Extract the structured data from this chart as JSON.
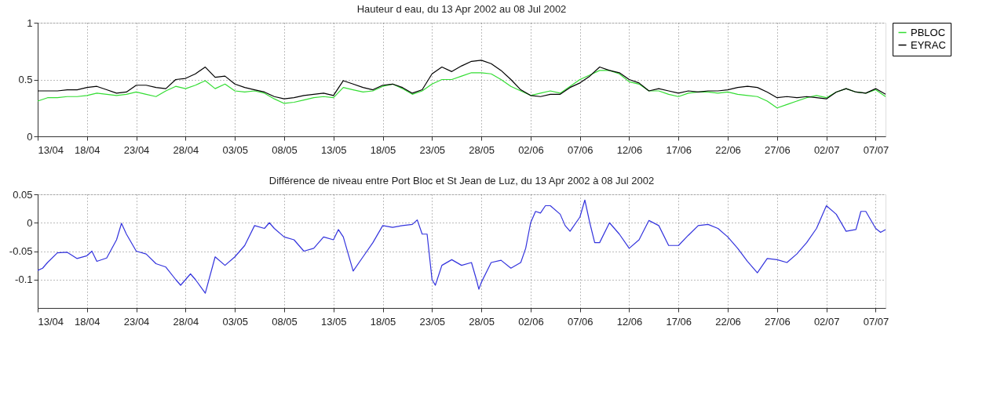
{
  "chart_data": [
    {
      "type": "line",
      "title": "Hauteur d eau, du 13 Apr 2002 au 08 Jul 2002",
      "x": [
        "2002-04-13",
        "2002-04-14",
        "2002-04-15",
        "2002-04-16",
        "2002-04-17",
        "2002-04-18",
        "2002-04-19",
        "2002-04-20",
        "2002-04-21",
        "2002-04-22",
        "2002-04-23",
        "2002-04-24",
        "2002-04-25",
        "2002-04-26",
        "2002-04-27",
        "2002-04-28",
        "2002-04-29",
        "2002-04-30",
        "2002-05-01",
        "2002-05-02",
        "2002-05-03",
        "2002-05-04",
        "2002-05-05",
        "2002-05-06",
        "2002-05-07",
        "2002-05-08",
        "2002-05-09",
        "2002-05-10",
        "2002-05-11",
        "2002-05-12",
        "2002-05-13",
        "2002-05-14",
        "2002-05-15",
        "2002-05-16",
        "2002-05-17",
        "2002-05-18",
        "2002-05-19",
        "2002-05-20",
        "2002-05-21",
        "2002-05-22",
        "2002-05-23",
        "2002-05-24",
        "2002-05-25",
        "2002-05-26",
        "2002-05-27",
        "2002-05-28",
        "2002-05-29",
        "2002-05-30",
        "2002-05-31",
        "2002-06-01",
        "2002-06-02",
        "2002-06-03",
        "2002-06-04",
        "2002-06-05",
        "2002-06-06",
        "2002-06-07",
        "2002-06-08",
        "2002-06-09",
        "2002-06-10",
        "2002-06-11",
        "2002-06-12",
        "2002-06-13",
        "2002-06-14",
        "2002-06-15",
        "2002-06-16",
        "2002-06-17",
        "2002-06-18",
        "2002-06-19",
        "2002-06-20",
        "2002-06-21",
        "2002-06-22",
        "2002-06-23",
        "2002-06-24",
        "2002-06-25",
        "2002-06-26",
        "2002-06-27",
        "2002-06-28",
        "2002-06-29",
        "2002-06-30",
        "2002-07-01",
        "2002-07-02",
        "2002-07-03",
        "2002-07-04",
        "2002-07-05",
        "2002-07-06",
        "2002-07-07",
        "2002-07-08"
      ],
      "series": [
        {
          "name": "PBLOC",
          "color": "#33dd33",
          "values": [
            0.31,
            0.34,
            0.34,
            0.35,
            0.35,
            0.36,
            0.38,
            0.37,
            0.36,
            0.37,
            0.39,
            0.37,
            0.35,
            0.4,
            0.44,
            0.42,
            0.45,
            0.49,
            0.42,
            0.46,
            0.4,
            0.39,
            0.4,
            0.38,
            0.33,
            0.29,
            0.3,
            0.32,
            0.34,
            0.35,
            0.34,
            0.43,
            0.41,
            0.39,
            0.4,
            0.44,
            0.46,
            0.42,
            0.37,
            0.4,
            0.46,
            0.5,
            0.5,
            0.53,
            0.56,
            0.56,
            0.55,
            0.5,
            0.44,
            0.4,
            0.36,
            0.38,
            0.4,
            0.38,
            0.44,
            0.5,
            0.54,
            0.58,
            0.58,
            0.55,
            0.48,
            0.46,
            0.4,
            0.4,
            0.37,
            0.35,
            0.38,
            0.39,
            0.39,
            0.38,
            0.39,
            0.37,
            0.36,
            0.35,
            0.31,
            0.25,
            0.28,
            0.31,
            0.34,
            0.36,
            0.34,
            0.39,
            0.42,
            0.39,
            0.38,
            0.41,
            0.35
          ]
        },
        {
          "name": "EYRAC",
          "color": "#000000",
          "values": [
            0.4,
            0.4,
            0.4,
            0.41,
            0.41,
            0.43,
            0.44,
            0.41,
            0.38,
            0.39,
            0.45,
            0.45,
            0.43,
            0.42,
            0.5,
            0.51,
            0.55,
            0.61,
            0.52,
            0.53,
            0.46,
            0.43,
            0.41,
            0.39,
            0.35,
            0.33,
            0.34,
            0.36,
            0.37,
            0.38,
            0.36,
            0.49,
            0.46,
            0.43,
            0.41,
            0.45,
            0.46,
            0.43,
            0.38,
            0.41,
            0.55,
            0.61,
            0.57,
            0.62,
            0.66,
            0.67,
            0.64,
            0.58,
            0.5,
            0.41,
            0.36,
            0.35,
            0.37,
            0.37,
            0.43,
            0.47,
            0.53,
            0.61,
            0.58,
            0.56,
            0.5,
            0.47,
            0.4,
            0.42,
            0.4,
            0.38,
            0.4,
            0.39,
            0.4,
            0.4,
            0.41,
            0.43,
            0.44,
            0.43,
            0.39,
            0.34,
            0.35,
            0.34,
            0.35,
            0.34,
            0.33,
            0.39,
            0.42,
            0.39,
            0.38,
            0.42,
            0.37
          ]
        }
      ],
      "xlim": [
        "2002-04-13",
        "2002-07-08"
      ],
      "xticks": [
        {
          "value": "2002-04-13",
          "label": "13/04"
        },
        {
          "value": "2002-04-18",
          "label": "18/04"
        },
        {
          "value": "2002-04-23",
          "label": "23/04"
        },
        {
          "value": "2002-04-28",
          "label": "28/04"
        },
        {
          "value": "2002-05-03",
          "label": "03/05"
        },
        {
          "value": "2002-05-08",
          "label": "08/05"
        },
        {
          "value": "2002-05-13",
          "label": "13/05"
        },
        {
          "value": "2002-05-18",
          "label": "18/05"
        },
        {
          "value": "2002-05-23",
          "label": "23/05"
        },
        {
          "value": "2002-05-28",
          "label": "28/05"
        },
        {
          "value": "2002-06-02",
          "label": "02/06"
        },
        {
          "value": "2002-06-07",
          "label": "07/06"
        },
        {
          "value": "2002-06-12",
          "label": "12/06"
        },
        {
          "value": "2002-06-17",
          "label": "17/06"
        },
        {
          "value": "2002-06-22",
          "label": "22/06"
        },
        {
          "value": "2002-06-27",
          "label": "27/06"
        },
        {
          "value": "2002-07-02",
          "label": "02/07"
        },
        {
          "value": "2002-07-07",
          "label": "07/07"
        }
      ],
      "ylim": [
        0,
        1
      ],
      "yticks": [
        0,
        0.5,
        1
      ],
      "grid": true,
      "legend": "right",
      "line_style": "solid",
      "marker": "none"
    },
    {
      "type": "line",
      "title": "Différence de niveau entre Port Bloc et St Jean de Luz, du 13 Apr 2002 à 08 Jul 2002",
      "x": [
        "2002-04-13",
        "2002-04-13T12:00",
        "2002-04-14",
        "2002-04-15",
        "2002-04-16",
        "2002-04-17",
        "2002-04-18",
        "2002-04-18T12:00",
        "2002-04-19",
        "2002-04-20",
        "2002-04-21",
        "2002-04-21T12:00",
        "2002-04-22",
        "2002-04-23",
        "2002-04-24",
        "2002-04-25",
        "2002-04-26",
        "2002-04-27",
        "2002-04-27T12:00",
        "2002-04-28",
        "2002-04-28T12:00",
        "2002-04-29",
        "2002-04-30",
        "2002-05-01",
        "2002-05-02",
        "2002-05-03",
        "2002-05-04",
        "2002-05-05",
        "2002-05-06",
        "2002-05-06T12:00",
        "2002-05-07",
        "2002-05-08",
        "2002-05-09",
        "2002-05-10",
        "2002-05-11",
        "2002-05-12",
        "2002-05-13",
        "2002-05-13T12:00",
        "2002-05-14",
        "2002-05-15",
        "2002-05-16",
        "2002-05-17",
        "2002-05-18",
        "2002-05-19",
        "2002-05-20",
        "2002-05-21",
        "2002-05-21T12:00",
        "2002-05-22",
        "2002-05-22T12:00",
        "2002-05-23",
        "2002-05-23T08:00",
        "2002-05-24",
        "2002-05-25",
        "2002-05-26",
        "2002-05-27",
        "2002-05-27T12:00",
        "2002-05-27T18:00",
        "2002-05-28",
        "2002-05-29",
        "2002-05-30",
        "2002-05-31",
        "2002-06-01",
        "2002-06-01T12:00",
        "2002-06-02",
        "2002-06-02T12:00",
        "2002-06-03",
        "2002-06-03T12:00",
        "2002-06-04",
        "2002-06-05",
        "2002-06-05T12:00",
        "2002-06-06",
        "2002-06-07",
        "2002-06-07T12:00",
        "2002-06-08",
        "2002-06-08T12:00",
        "2002-06-09",
        "2002-06-10",
        "2002-06-11",
        "2002-06-12",
        "2002-06-13",
        "2002-06-14",
        "2002-06-15",
        "2002-06-16",
        "2002-06-17",
        "2002-06-18",
        "2002-06-19",
        "2002-06-20",
        "2002-06-21",
        "2002-06-22",
        "2002-06-23",
        "2002-06-24",
        "2002-06-25",
        "2002-06-26",
        "2002-06-27",
        "2002-06-28",
        "2002-06-29",
        "2002-06-30",
        "2002-07-01",
        "2002-07-02",
        "2002-07-03",
        "2002-07-04",
        "2002-07-05",
        "2002-07-05T12:00",
        "2002-07-06",
        "2002-07-07",
        "2002-07-07T12:00",
        "2002-07-08"
      ],
      "series": [
        {
          "color": "#3333dd",
          "values": [
            -0.084,
            -0.08,
            -0.07,
            -0.053,
            -0.052,
            -0.063,
            -0.058,
            -0.05,
            -0.068,
            -0.062,
            -0.03,
            -0.001,
            -0.02,
            -0.05,
            -0.055,
            -0.072,
            -0.078,
            -0.1,
            -0.11,
            -0.1,
            -0.09,
            -0.1,
            -0.124,
            -0.06,
            -0.075,
            -0.06,
            -0.04,
            -0.005,
            -0.01,
            0.0,
            -0.01,
            -0.025,
            -0.03,
            -0.05,
            -0.045,
            -0.025,
            -0.03,
            -0.012,
            -0.025,
            -0.085,
            -0.06,
            -0.035,
            -0.005,
            -0.008,
            -0.005,
            -0.003,
            0.005,
            -0.02,
            -0.02,
            -0.1,
            -0.11,
            -0.075,
            -0.065,
            -0.075,
            -0.07,
            -0.1,
            -0.117,
            -0.105,
            -0.07,
            -0.066,
            -0.08,
            -0.07,
            -0.045,
            0.0,
            0.02,
            0.017,
            0.03,
            0.03,
            0.015,
            -0.005,
            -0.015,
            0.01,
            0.04,
            0.0,
            -0.035,
            -0.035,
            0.0,
            -0.02,
            -0.045,
            -0.03,
            0.004,
            -0.005,
            -0.04,
            -0.04,
            -0.022,
            -0.005,
            -0.003,
            -0.01,
            -0.025,
            -0.045,
            -0.068,
            -0.088,
            -0.063,
            -0.065,
            -0.07,
            -0.055,
            -0.035,
            -0.01,
            0.03,
            0.015,
            -0.015,
            -0.012,
            0.02,
            0.02,
            -0.01,
            -0.017,
            -0.012
          ]
        }
      ],
      "xlim": [
        "2002-04-13",
        "2002-07-08"
      ],
      "xticks": [
        {
          "value": "2002-04-13",
          "label": "13/04"
        },
        {
          "value": "2002-04-18",
          "label": "18/04"
        },
        {
          "value": "2002-04-23",
          "label": "23/04"
        },
        {
          "value": "2002-04-28",
          "label": "28/04"
        },
        {
          "value": "2002-05-03",
          "label": "03/05"
        },
        {
          "value": "2002-05-08",
          "label": "08/05"
        },
        {
          "value": "2002-05-13",
          "label": "13/05"
        },
        {
          "value": "2002-05-18",
          "label": "18/05"
        },
        {
          "value": "2002-05-23",
          "label": "23/05"
        },
        {
          "value": "2002-05-28",
          "label": "28/05"
        },
        {
          "value": "2002-06-02",
          "label": "02/06"
        },
        {
          "value": "2002-06-07",
          "label": "07/06"
        },
        {
          "value": "2002-06-12",
          "label": "12/06"
        },
        {
          "value": "2002-06-17",
          "label": "17/06"
        },
        {
          "value": "2002-06-22",
          "label": "22/06"
        },
        {
          "value": "2002-06-27",
          "label": "27/06"
        },
        {
          "value": "2002-07-02",
          "label": "02/07"
        },
        {
          "value": "2002-07-07",
          "label": "07/07"
        }
      ],
      "ylim": [
        -0.15,
        0.05
      ],
      "yticks": [
        -0.1,
        -0.05,
        0,
        0.05
      ],
      "grid": true,
      "line_style": "solid",
      "marker": "none"
    }
  ]
}
